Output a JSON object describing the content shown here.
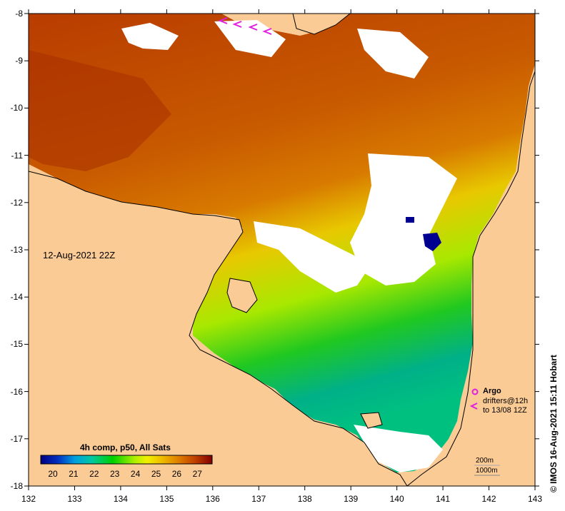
{
  "map": {
    "timestamp": "12-Aug-2021 22Z",
    "lat_labels": [
      "-8",
      "-9",
      "-10",
      "-11",
      "-12",
      "-13",
      "-14",
      "-15",
      "-16",
      "-17",
      "-18"
    ],
    "lon_labels": [
      "132",
      "133",
      "134",
      "135",
      "136",
      "137",
      "138",
      "139",
      "140",
      "141",
      "142",
      "143"
    ]
  },
  "colorbar": {
    "title": "4h comp, p50, All Sats",
    "ticks": [
      "20",
      "21",
      "22",
      "23",
      "24",
      "25",
      "26",
      "27"
    ],
    "colors": [
      "#000080",
      "#0030c0",
      "#00a0e0",
      "#00c8a0",
      "#00d000",
      "#b0f000",
      "#f0f000",
      "#f0c000",
      "#e08000",
      "#c04000",
      "#800000"
    ]
  },
  "legend": {
    "argo_label": "Argo",
    "drifters_line1": "drifters@12h",
    "drifters_line2": "to 13/08 12Z",
    "argo_color": "#e020e0",
    "isobath_1": "200m",
    "isobath_2": "1000m"
  },
  "credit": "© IMOS 16-Aug-2021 15:11 Hobart",
  "colors": {
    "land": "#fbcb96",
    "cloud": "#ffffff",
    "sst_warm": "#b84000",
    "sst_mid": "#d87000",
    "sst_cool": "#00c060"
  }
}
